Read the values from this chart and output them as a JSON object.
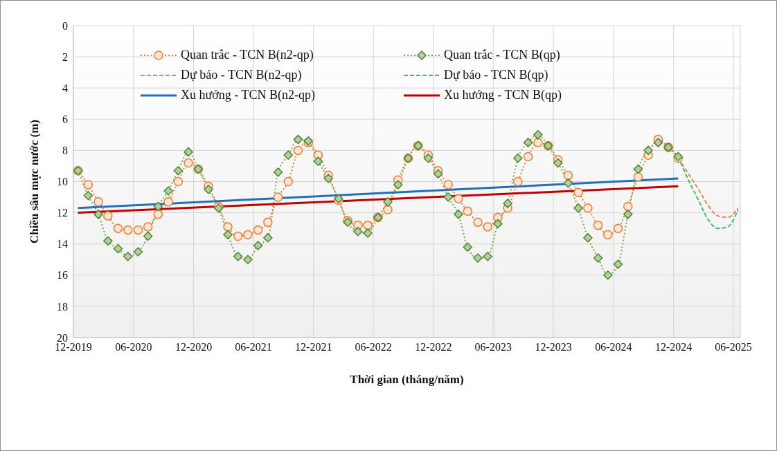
{
  "chart_data": {
    "type": "line",
    "xlabel": "Thời gian (tháng/năm)",
    "ylabel": "Chiều sâu mực nước (m)",
    "x": [
      "2019-12-15",
      "2020-01-15",
      "2020-02-15",
      "2020-03-15",
      "2020-04-15",
      "2020-05-15",
      "2020-06-15",
      "2020-07-15",
      "2020-08-15",
      "2020-09-15",
      "2020-10-15",
      "2020-11-15",
      "2020-12-15",
      "2021-01-15",
      "2021-02-15",
      "2021-03-15",
      "2021-04-15",
      "2021-05-15",
      "2021-06-15",
      "2021-07-15",
      "2021-08-15",
      "2021-09-15",
      "2021-10-15",
      "2021-11-15",
      "2021-12-15",
      "2022-01-15",
      "2022-02-15",
      "2022-03-15",
      "2022-04-15",
      "2022-05-15",
      "2022-06-15",
      "2022-07-15",
      "2022-08-15",
      "2022-09-15",
      "2022-10-15",
      "2022-11-15",
      "2022-12-15",
      "2023-01-15",
      "2023-02-15",
      "2023-03-15",
      "2023-04-15",
      "2023-05-15",
      "2023-06-15",
      "2023-07-15",
      "2023-08-15",
      "2023-09-15",
      "2023-10-15",
      "2023-11-15",
      "2023-12-15",
      "2024-01-15",
      "2024-02-15",
      "2024-03-15",
      "2024-04-15",
      "2024-05-15",
      "2024-06-15",
      "2024-07-15",
      "2024-08-15",
      "2024-09-15",
      "2024-10-15",
      "2024-11-15",
      "2024-12-15"
    ],
    "series": [
      {
        "name": "Quan trắc - TCN B(n2-qp)",
        "color": "#ed7d31",
        "marker": "circle",
        "line_style": "dotted",
        "values": [
          9.3,
          10.2,
          11.3,
          12.2,
          13.0,
          13.1,
          13.1,
          12.9,
          12.1,
          11.3,
          10.0,
          8.8,
          9.2,
          10.3,
          11.6,
          12.9,
          13.5,
          13.4,
          13.1,
          12.6,
          11.0,
          10.0,
          8.0,
          7.5,
          8.3,
          9.6,
          11.2,
          12.5,
          12.8,
          12.8,
          12.3,
          11.8,
          9.9,
          8.5,
          7.7,
          8.3,
          9.3,
          10.2,
          11.1,
          11.9,
          12.6,
          12.9,
          12.3,
          11.7,
          10.0,
          8.4,
          7.5,
          7.7,
          8.6,
          9.6,
          10.7,
          11.7,
          12.8,
          13.4,
          13.0,
          11.6,
          9.7,
          8.3,
          7.3,
          7.8,
          8.5
        ]
      },
      {
        "name": "Quan trắc - TCN B(qp)",
        "color": "#70ad47",
        "marker": "diamond",
        "line_style": "dotted",
        "values": [
          9.3,
          10.9,
          12.1,
          13.8,
          14.3,
          14.8,
          14.5,
          13.5,
          11.6,
          10.6,
          9.3,
          8.1,
          9.2,
          10.5,
          11.7,
          13.4,
          14.8,
          15.0,
          14.1,
          13.6,
          9.4,
          8.3,
          7.3,
          7.4,
          8.7,
          9.8,
          11.1,
          12.6,
          13.2,
          13.3,
          12.3,
          11.3,
          10.2,
          8.5,
          7.7,
          8.5,
          9.5,
          11.0,
          12.1,
          14.2,
          14.9,
          14.8,
          12.7,
          11.4,
          8.5,
          7.5,
          7.0,
          7.7,
          8.8,
          10.1,
          11.7,
          13.6,
          14.9,
          16.0,
          15.3,
          12.1,
          9.2,
          8.0,
          7.5,
          7.8,
          8.4
        ]
      },
      {
        "name": "Dự báo - TCN B(n2-qp)",
        "color": "#e0894f",
        "marker": "none",
        "line_style": "dashed",
        "x": [
          "2024-12-15",
          "2025-01-15",
          "2025-02-15",
          "2025-03-15",
          "2025-04-15",
          "2025-05-15",
          "2025-06-15"
        ],
        "values": [
          8.5,
          9.5,
          10.5,
          11.5,
          12.2,
          12.3,
          11.7
        ]
      },
      {
        "name": "Dự báo - TCN B(qp)",
        "color": "#3dbb6c",
        "marker": "none",
        "line_style": "dashed",
        "x": [
          "2024-12-15",
          "2025-01-15",
          "2025-02-15",
          "2025-03-15",
          "2025-04-15",
          "2025-05-15",
          "2025-06-15"
        ],
        "values": [
          8.4,
          9.9,
          11.2,
          12.4,
          13.0,
          12.9,
          11.8
        ]
      },
      {
        "name": "Xu hướng - TCN B(n2-qp)",
        "color": "#1f70c1",
        "marker": "none",
        "line_style": "solid",
        "x": [
          "2019-12-15",
          "2024-12-15"
        ],
        "values": [
          11.7,
          9.8
        ]
      },
      {
        "name": "Xu hướng - TCN B(qp)",
        "color": "#c00000",
        "marker": "none",
        "line_style": "solid",
        "x": [
          "2019-12-15",
          "2024-12-15"
        ],
        "values": [
          12.0,
          10.3
        ]
      }
    ],
    "xlim": [
      "2019-12-01",
      "2025-06-22"
    ],
    "xticks": [
      {
        "value": "2019-12-01",
        "label": "12-2019"
      },
      {
        "value": "2020-06-01",
        "label": "06-2020"
      },
      {
        "value": "2020-12-01",
        "label": "12-2020"
      },
      {
        "value": "2021-06-01",
        "label": "06-2021"
      },
      {
        "value": "2021-12-01",
        "label": "12-2021"
      },
      {
        "value": "2022-06-01",
        "label": "06-2022"
      },
      {
        "value": "2022-12-01",
        "label": "12-2022"
      },
      {
        "value": "2023-06-01",
        "label": "06-2023"
      },
      {
        "value": "2023-12-01",
        "label": "12-2023"
      },
      {
        "value": "2024-06-01",
        "label": "06-2024"
      },
      {
        "value": "2024-12-01",
        "label": "12-2024"
      },
      {
        "value": "2025-06-01",
        "label": "06-2025"
      }
    ],
    "ylim": [
      20,
      0
    ],
    "yticks": [
      0,
      2,
      4,
      6,
      8,
      10,
      12,
      14,
      16,
      18,
      20
    ],
    "grid": true,
    "legend": "top"
  }
}
